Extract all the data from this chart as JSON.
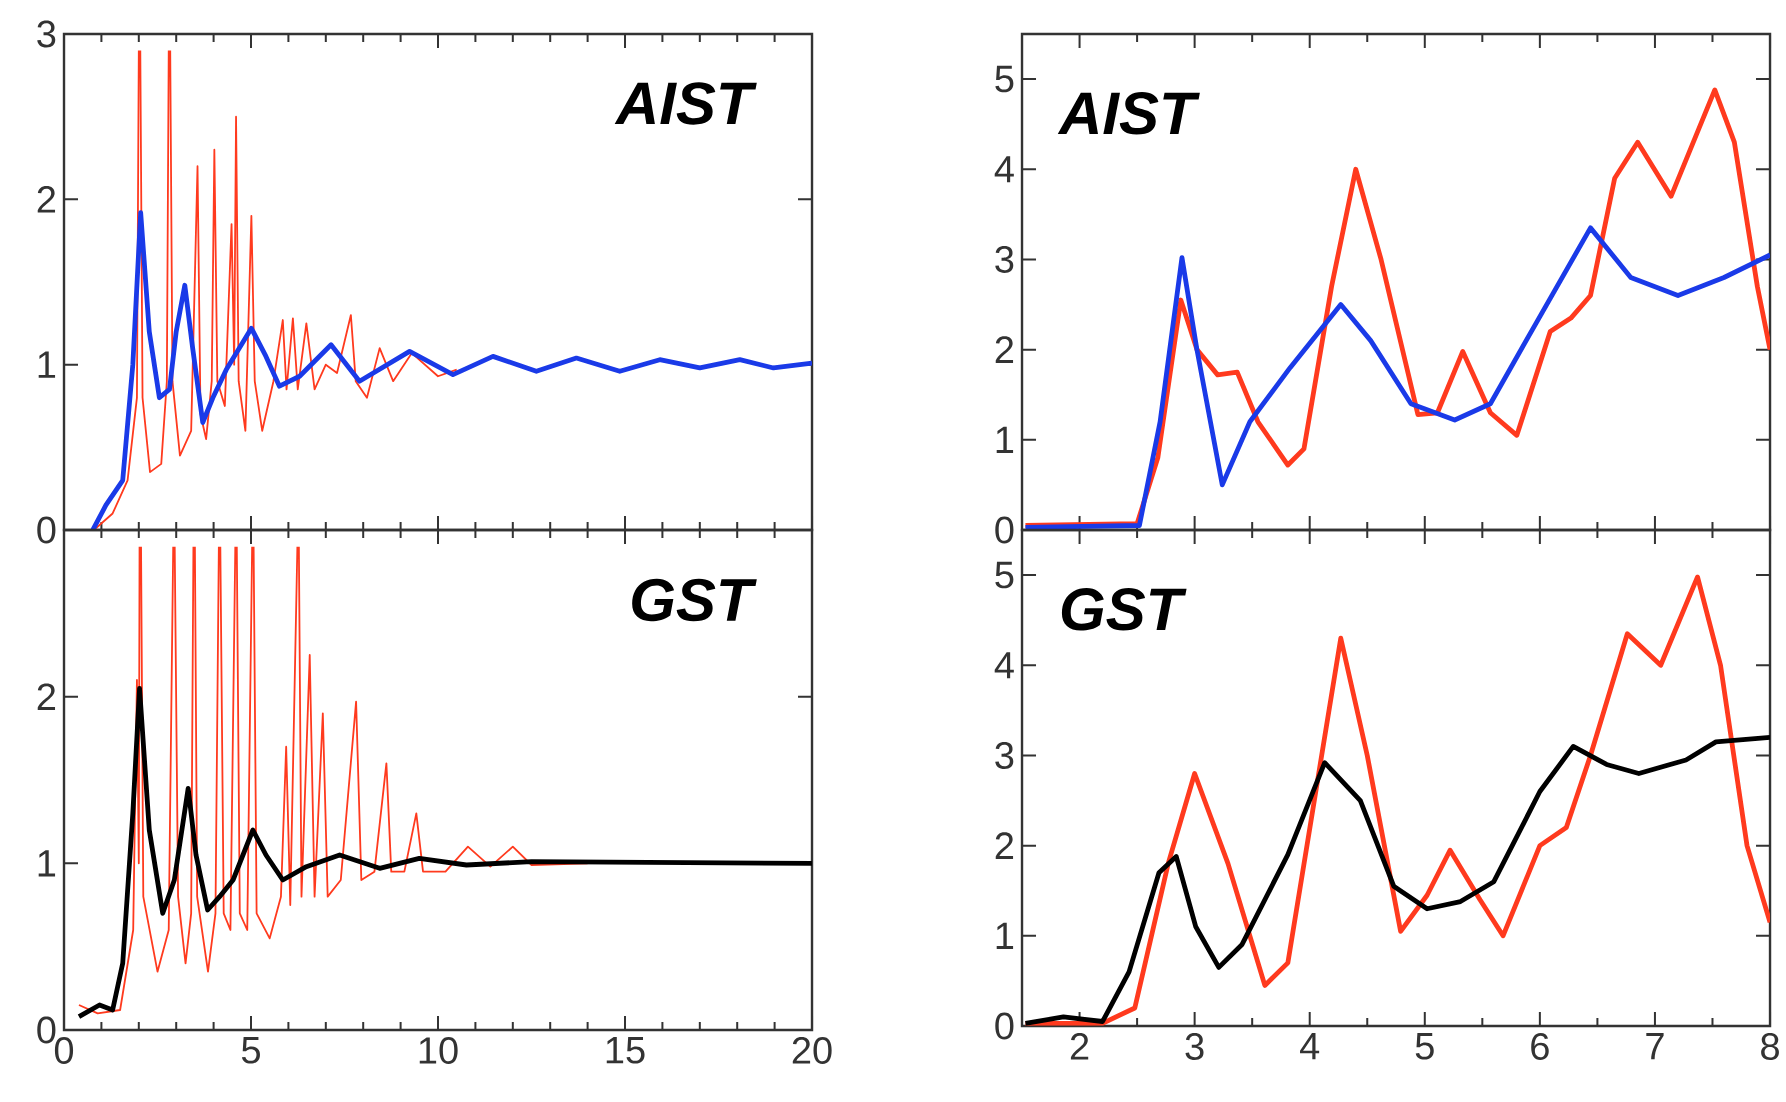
{
  "chart_data": [
    {
      "type": "line",
      "annotations": [
        "AIST"
      ],
      "xlim": [
        0,
        20
      ],
      "xticks": [
        0,
        5,
        10,
        15,
        20
      ],
      "ylim": [
        0,
        3
      ],
      "yticks": [
        0,
        1,
        2,
        3
      ],
      "tick_labels": "y",
      "series": [
        {
          "color": "#ff3a1e",
          "x": [
            0.8,
            1.3,
            1.7,
            1.95,
            2.0,
            2.02,
            2.04,
            2.1,
            2.3,
            2.6,
            2.75,
            2.8,
            2.82,
            2.84,
            2.9,
            3.1,
            3.4,
            3.57,
            3.65,
            3.8,
            3.95,
            4.02,
            4.1,
            4.3,
            4.48,
            4.55,
            4.6,
            4.67,
            4.85,
            5.01,
            5.1,
            5.3,
            5.6,
            5.85,
            5.95,
            6.12,
            6.25,
            6.48,
            6.7,
            7.0,
            7.3,
            7.67,
            7.8,
            8.1,
            8.44,
            8.8,
            9.3,
            10.0,
            10.5
          ],
          "values": [
            0.0,
            0.1,
            0.3,
            0.8,
            2.9,
            null,
            2.9,
            0.8,
            0.35,
            0.4,
            0.9,
            2.9,
            null,
            2.9,
            0.9,
            0.45,
            0.6,
            2.2,
            0.7,
            0.55,
            0.9,
            2.3,
            0.9,
            0.75,
            1.85,
            1.0,
            2.5,
            0.9,
            0.6,
            1.9,
            0.9,
            0.6,
            0.9,
            1.27,
            0.85,
            1.28,
            0.85,
            1.25,
            0.85,
            1.0,
            0.95,
            1.3,
            0.9,
            0.8,
            1.1,
            0.9,
            1.07,
            0.93,
            0.97
          ]
        },
        {
          "color": "#1a3ae8",
          "x": [
            0.77,
            1.12,
            1.57,
            1.84,
            2.05,
            2.28,
            2.55,
            2.82,
            3.0,
            3.23,
            3.44,
            3.71,
            3.98,
            4.34,
            5.01,
            5.4,
            5.76,
            6.3,
            7.14,
            7.9,
            9.24,
            10.4,
            11.47,
            12.63,
            13.7,
            14.86,
            15.93,
            17.0,
            18.07,
            18.97,
            20
          ],
          "values": [
            0,
            0.15,
            0.3,
            1.0,
            1.92,
            1.2,
            0.8,
            0.85,
            1.2,
            1.48,
            1.1,
            0.65,
            0.8,
            0.97,
            1.22,
            1.05,
            0.87,
            0.93,
            1.12,
            0.9,
            1.08,
            0.94,
            1.05,
            0.96,
            1.04,
            0.96,
            1.03,
            0.98,
            1.03,
            0.98,
            1.01
          ]
        }
      ]
    },
    {
      "type": "line",
      "annotations": [
        "AIST"
      ],
      "xlim": [
        1.5,
        8
      ],
      "xticks": [
        2,
        3,
        4,
        5,
        6,
        7,
        8
      ],
      "ylim": [
        0,
        5.5
      ],
      "yticks": [
        0,
        1,
        2,
        3,
        4,
        5
      ],
      "tick_labels": "y",
      "series": [
        {
          "color": "#ff3a1e",
          "x": [
            1.53,
            2.5,
            2.68,
            2.88,
            3.02,
            3.2,
            3.37,
            3.55,
            3.81,
            3.95,
            4.19,
            4.4,
            4.62,
            4.94,
            5.11,
            5.33,
            5.57,
            5.8,
            6.09,
            6.27,
            6.44,
            6.65,
            6.85,
            7.14,
            7.52,
            7.69,
            7.89,
            8.0
          ],
          "values": [
            0.05,
            0.07,
            0.8,
            2.55,
            2.0,
            1.72,
            1.75,
            1.2,
            0.72,
            0.9,
            2.7,
            4.0,
            3.0,
            1.28,
            1.3,
            1.98,
            1.3,
            1.05,
            2.2,
            2.35,
            2.6,
            3.9,
            4.3,
            3.7,
            4.88,
            4.3,
            2.7,
            2.0
          ]
        },
        {
          "color": "#1a3ae8",
          "x": [
            1.53,
            2.52,
            2.7,
            2.89,
            3.02,
            3.24,
            3.48,
            3.83,
            4.27,
            4.53,
            4.88,
            5.26,
            5.57,
            5.97,
            6.44,
            6.79,
            7.2,
            7.6,
            8.0
          ],
          "values": [
            0.03,
            0.05,
            1.2,
            3.02,
            2.0,
            0.5,
            1.2,
            1.8,
            2.5,
            2.1,
            1.4,
            1.22,
            1.4,
            2.3,
            3.35,
            2.8,
            2.6,
            2.8,
            3.05
          ]
        }
      ]
    },
    {
      "type": "line",
      "annotations": [
        "GST"
      ],
      "xlim": [
        0,
        20
      ],
      "xticks": [
        0,
        5,
        10,
        15,
        20
      ],
      "ylim": [
        0,
        3
      ],
      "yticks": [
        0,
        1,
        2
      ],
      "series": [
        {
          "color": "#ff3a1e",
          "x": [
            0.4,
            0.9,
            1.5,
            1.85,
            1.95,
            2.0,
            2.02,
            2.04,
            2.06,
            2.12,
            2.5,
            2.8,
            2.92,
            2.94,
            2.96,
            3.05,
            3.25,
            3.4,
            3.46,
            3.48,
            3.5,
            3.56,
            3.85,
            4.05,
            4.14,
            4.16,
            4.18,
            4.27,
            4.45,
            4.58,
            4.6,
            4.62,
            4.7,
            4.9,
            5.03,
            5.05,
            5.07,
            5.15,
            5.5,
            5.8,
            5.94,
            6.05,
            6.24,
            6.26,
            6.28,
            6.35,
            6.57,
            6.7,
            6.92,
            7.05,
            7.4,
            7.81,
            7.95,
            8.3,
            8.62,
            8.75,
            9.1,
            9.42,
            9.6,
            10.2,
            10.8,
            11.4,
            12.0,
            12.5,
            14
          ],
          "values": [
            0.15,
            0.1,
            0.12,
            0.6,
            2.1,
            1.0,
            2.9,
            null,
            2.9,
            0.8,
            0.35,
            0.6,
            2.9,
            null,
            2.9,
            0.8,
            0.4,
            0.7,
            2.9,
            null,
            2.9,
            0.8,
            0.35,
            0.7,
            2.9,
            null,
            2.9,
            0.7,
            0.6,
            2.9,
            null,
            2.9,
            0.7,
            0.6,
            2.9,
            null,
            2.9,
            0.7,
            0.55,
            0.8,
            1.7,
            0.75,
            2.9,
            null,
            2.9,
            0.8,
            2.25,
            0.8,
            1.9,
            0.8,
            0.9,
            1.97,
            0.9,
            0.95,
            1.6,
            0.95,
            0.95,
            1.3,
            0.95,
            0.95,
            1.1,
            0.98,
            1.1,
            0.99,
            1.0
          ]
        },
        {
          "color": "#000000",
          "x": [
            0.4,
            0.95,
            1.3,
            1.57,
            1.84,
            2.02,
            2.28,
            2.64,
            2.95,
            3.32,
            3.53,
            3.84,
            4.16,
            4.52,
            5.05,
            5.4,
            5.85,
            6.48,
            7.37,
            8.44,
            9.5,
            10.76,
            12.5,
            20
          ],
          "values": [
            0.08,
            0.15,
            0.12,
            0.4,
            1.3,
            2.05,
            1.2,
            0.7,
            0.9,
            1.45,
            1.05,
            0.72,
            0.8,
            0.9,
            1.2,
            1.05,
            0.9,
            0.98,
            1.05,
            0.97,
            1.03,
            0.99,
            1.01,
            1.0
          ]
        }
      ]
    },
    {
      "type": "line",
      "annotations": [
        "GST"
      ],
      "xlim": [
        1.5,
        8
      ],
      "xticks": [
        2,
        3,
        4,
        5,
        6,
        7,
        8
      ],
      "ylim": [
        0,
        5.5
      ],
      "yticks": [
        0,
        1,
        2,
        3,
        4,
        5
      ],
      "series": [
        {
          "color": "#ff3a1e",
          "x": [
            1.53,
            2.2,
            2.48,
            2.77,
            3.0,
            3.29,
            3.61,
            3.81,
            4.04,
            4.27,
            4.5,
            4.79,
            5.02,
            5.22,
            5.48,
            5.68,
            6.0,
            6.23,
            6.44,
            6.76,
            7.05,
            7.37,
            7.57,
            7.8,
            8.0
          ],
          "values": [
            0.03,
            0.03,
            0.2,
            1.8,
            2.8,
            1.8,
            0.45,
            0.7,
            2.5,
            4.3,
            3.0,
            1.05,
            1.45,
            1.95,
            1.4,
            1.0,
            2.0,
            2.2,
            3.0,
            4.35,
            4.0,
            4.98,
            4.0,
            2.0,
            1.15
          ]
        },
        {
          "color": "#000000",
          "x": [
            1.53,
            1.86,
            2.2,
            2.43,
            2.69,
            2.84,
            3.01,
            3.21,
            3.41,
            3.81,
            4.13,
            4.44,
            4.73,
            5.02,
            5.31,
            5.6,
            6.0,
            6.29,
            6.58,
            6.86,
            7.27,
            7.53,
            8.0
          ],
          "values": [
            0.03,
            0.1,
            0.05,
            0.6,
            1.7,
            1.88,
            1.1,
            0.65,
            0.9,
            1.9,
            2.92,
            2.5,
            1.55,
            1.3,
            1.38,
            1.6,
            2.6,
            3.1,
            2.9,
            2.8,
            2.95,
            3.15,
            3.2
          ]
        }
      ]
    }
  ]
}
